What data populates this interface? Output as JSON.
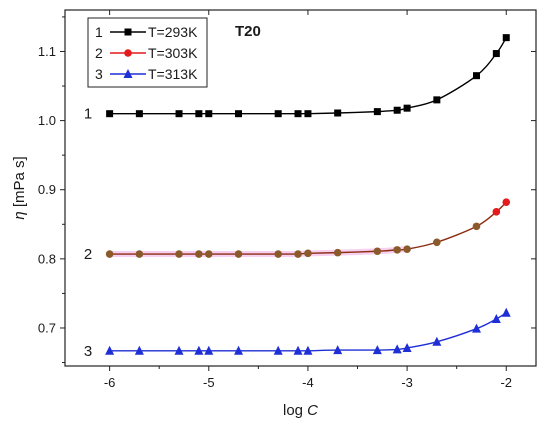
{
  "chart_data": {
    "type": "line",
    "title": "",
    "annotation": "T20",
    "xlabel": {
      "main": "log ",
      "italic": "C"
    },
    "ylabel": {
      "italic": "η",
      "main": " [mPa s]"
    },
    "xlim": [
      -6.45,
      -1.7
    ],
    "ylim": [
      0.645,
      1.16
    ],
    "xticks": [
      -6,
      -5,
      -4,
      -3,
      -2
    ],
    "yticks": [
      0.7,
      0.8,
      0.9,
      1.0,
      1.1
    ],
    "xtick_labels": [
      "-6",
      "-5",
      "-4",
      "-3",
      "-2"
    ],
    "ytick_labels": [
      "0.7",
      "0.8",
      "0.9",
      "1.0",
      "1.1"
    ],
    "legend_position": "top-left",
    "series": [
      {
        "name": "T=293K",
        "number": "1",
        "curve_label": "1",
        "color": "#000000",
        "marker": "square",
        "x": [
          -6.0,
          -5.7,
          -5.3,
          -5.1,
          -5.0,
          -4.7,
          -4.3,
          -4.1,
          -4.0,
          -3.7,
          -3.3,
          -3.1,
          -3.0,
          -2.7,
          -2.3,
          -2.1,
          -2.0
        ],
        "y": [
          1.01,
          1.01,
          1.01,
          1.01,
          1.01,
          1.01,
          1.01,
          1.01,
          1.01,
          1.011,
          1.013,
          1.015,
          1.018,
          1.03,
          1.065,
          1.097,
          1.12
        ]
      },
      {
        "name": "T=303K",
        "number": "2",
        "curve_label": "2",
        "color": "#e41a1c",
        "line_color": "#8b2d10",
        "marker_color_low": "#8b5a2b",
        "marker": "circle",
        "x": [
          -6.0,
          -5.7,
          -5.3,
          -5.1,
          -5.0,
          -4.7,
          -4.3,
          -4.1,
          -4.0,
          -3.7,
          -3.3,
          -3.1,
          -3.0,
          -2.7,
          -2.3,
          -2.1,
          -2.0
        ],
        "y": [
          0.807,
          0.807,
          0.807,
          0.807,
          0.807,
          0.807,
          0.807,
          0.807,
          0.808,
          0.809,
          0.811,
          0.813,
          0.814,
          0.824,
          0.847,
          0.868,
          0.882
        ]
      },
      {
        "name": "T=313K",
        "number": "3",
        "curve_label": "3",
        "color": "#1f2fd6",
        "marker": "triangle",
        "x": [
          -6.0,
          -5.7,
          -5.3,
          -5.1,
          -5.0,
          -4.7,
          -4.3,
          -4.1,
          -4.0,
          -3.7,
          -3.3,
          -3.1,
          -3.0,
          -2.7,
          -2.3,
          -2.1,
          -2.0
        ],
        "y": [
          0.667,
          0.667,
          0.667,
          0.667,
          0.667,
          0.667,
          0.667,
          0.667,
          0.667,
          0.668,
          0.668,
          0.669,
          0.671,
          0.68,
          0.699,
          0.713,
          0.722
        ]
      }
    ]
  }
}
